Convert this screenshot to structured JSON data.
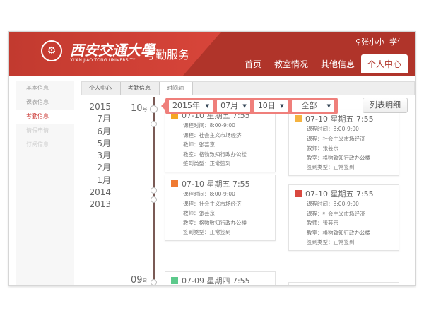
{
  "header": {
    "university_cn": "西安交通大學",
    "university_en": "XI'AN JIAO TONG UNIVERSITY",
    "service": "考勤服务",
    "user_icon": "person-icon",
    "user_name": "张小小",
    "role": "学生",
    "nav": [
      {
        "label": "首页"
      },
      {
        "label": "教室情况"
      },
      {
        "label": "其他信息"
      },
      {
        "label": "个人中心",
        "active": true
      }
    ]
  },
  "sidebar": {
    "items": [
      {
        "label": "基本信息"
      },
      {
        "label": "课表信息"
      },
      {
        "label": "考勤信息",
        "active": true
      },
      {
        "label": "请假申请"
      },
      {
        "label": "订阅信息"
      }
    ]
  },
  "breadcrumb": [
    "个人中心",
    "考勤信息",
    "时间轴"
  ],
  "years": [
    "2015",
    "7月",
    "6月",
    "5月",
    "3月",
    "2月",
    "1月",
    "2014",
    "2013"
  ],
  "day_labels": [
    {
      "num": "10",
      "unit": "号"
    },
    {
      "num": "09",
      "unit": "号"
    }
  ],
  "filter": {
    "year": "2015年",
    "month": "07月",
    "day": "10日",
    "type": "全部"
  },
  "list_button": "列表明细",
  "labels": {
    "time": "课程时间：",
    "course": "课程：",
    "teacher": "教师：",
    "room": "教室：",
    "type": "签到类型："
  },
  "cards": [
    {
      "title": "07-10 星期五 7:55",
      "time": "8:00-9:00",
      "course": "社会主义市场经济",
      "teacher": "张芸京",
      "room": "格物致知行政办公楼",
      "type": "正常签到",
      "color": "#f5a623"
    },
    {
      "title": "07-10 星期五 7:55",
      "time": "8:00-9:00",
      "course": "社会主义市场经济",
      "teacher": "张芸京",
      "room": "格物致知行政办公楼",
      "type": "正常签到",
      "color": "#f5b340"
    },
    {
      "title": "07-10 星期五 7:55",
      "time": "8:00-9:00",
      "course": "社会主义市场经济",
      "teacher": "张芸京",
      "room": "格物致知行政办公楼",
      "type": "正常签到",
      "color": "#ef7a32"
    },
    {
      "title": "07-10 星期五 7:55",
      "time": "8:00-9:00",
      "course": "社会主义市场经济",
      "teacher": "张芸京",
      "room": "格物致知行政办公楼",
      "type": "正常签到",
      "color": "#d9483f"
    },
    {
      "title": "07-09 星期四 7:55",
      "color": "#5cc98b"
    }
  ]
}
